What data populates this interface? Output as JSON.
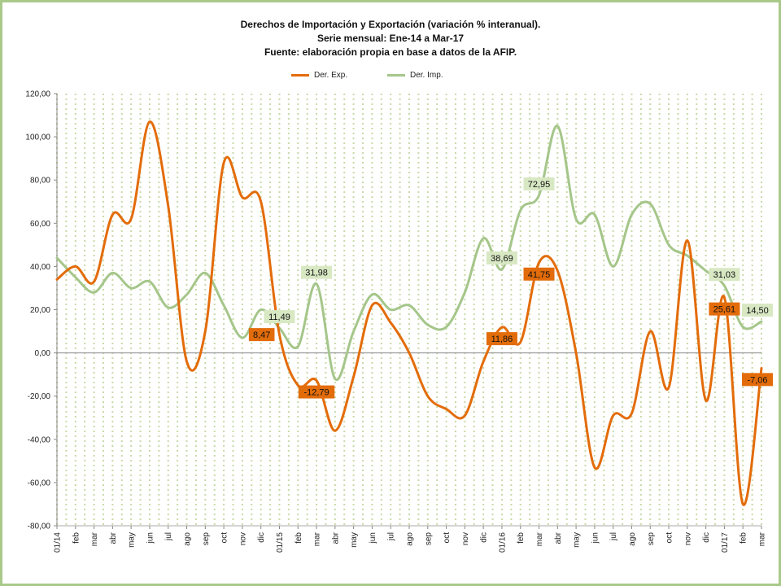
{
  "chart_data": {
    "type": "line",
    "title": [
      "Derechos de Importación y Exportación  (variación % interanual).",
      "Serie mensual: Ene-14 a Mar-17",
      "Fuente: elaboración  propia  en base a datos de la AFIP."
    ],
    "xlabel": "",
    "ylabel": "",
    "ylim": [
      -80,
      120
    ],
    "yticks": [
      "120,00",
      "100,00",
      "80,00",
      "60,00",
      "40,00",
      "20,00",
      "0,00",
      "-20,00",
      "-40,00",
      "-60,00",
      "-80,00"
    ],
    "ytick_values": [
      120,
      100,
      80,
      60,
      40,
      20,
      0,
      -20,
      -40,
      -60,
      -80
    ],
    "categories": [
      "01/14",
      "feb",
      "mar",
      "abr",
      "may",
      "jun",
      "jul",
      "ago",
      "sep",
      "oct",
      "nov",
      "dic",
      "01/15",
      "feb",
      "mar",
      "abr",
      "may",
      "jun",
      "jul",
      "ago",
      "sep",
      "oct",
      "nov",
      "dic",
      "01/16",
      "feb",
      "mar",
      "abr",
      "may",
      "jun",
      "jul",
      "ago",
      "sep",
      "oct",
      "nov",
      "dic",
      "01/17",
      "feb",
      "mar"
    ],
    "legend_position": "top-center",
    "grid": true,
    "series": [
      {
        "name": "Der. Exp.",
        "color": "#e36c0a",
        "values": [
          34,
          40,
          33,
          64,
          62,
          107,
          68,
          -4,
          10,
          88,
          72,
          70,
          8.47,
          -15,
          -12.79,
          -36,
          -11,
          22,
          14,
          0,
          -20,
          -26,
          -29,
          -4,
          11.86,
          5,
          41.75,
          38,
          0,
          -53,
          -29,
          -28,
          10,
          -16,
          52,
          -22,
          25.61,
          -70,
          -7.06
        ]
      },
      {
        "name": "Der. Imp.",
        "color": "#a5c68a",
        "values": [
          44,
          35,
          28,
          37,
          30,
          33,
          21,
          27,
          37,
          22,
          7,
          20,
          11.49,
          3,
          31.98,
          -12,
          10,
          27,
          20,
          22,
          13,
          12,
          28,
          53,
          38.69,
          66,
          72.95,
          105,
          62,
          64,
          40,
          64,
          69,
          50,
          45,
          38,
          31.03,
          12,
          14.5
        ]
      }
    ],
    "annotations": [
      {
        "series": 0,
        "index": 12,
        "label": "8,47",
        "pos": "left"
      },
      {
        "series": 0,
        "index": 14,
        "label": "-12,79",
        "pos": "below"
      },
      {
        "series": 0,
        "index": 24,
        "label": "11,86",
        "pos": "below"
      },
      {
        "series": 0,
        "index": 26,
        "label": "41,75",
        "pos": "below"
      },
      {
        "series": 0,
        "index": 36,
        "label": "25,61",
        "pos": "below"
      },
      {
        "series": 0,
        "index": 38,
        "label": "-7,06",
        "pos": "below"
      },
      {
        "series": 1,
        "index": 12,
        "label": "11,49",
        "pos": "above"
      },
      {
        "series": 1,
        "index": 14,
        "label": "31,98",
        "pos": "above"
      },
      {
        "series": 1,
        "index": 24,
        "label": "38,69",
        "pos": "above"
      },
      {
        "series": 1,
        "index": 26,
        "label": "72,95",
        "pos": "above"
      },
      {
        "series": 1,
        "index": 36,
        "label": "31,03",
        "pos": "above"
      },
      {
        "series": 1,
        "index": 38,
        "label": "14,50",
        "pos": "above"
      }
    ]
  }
}
